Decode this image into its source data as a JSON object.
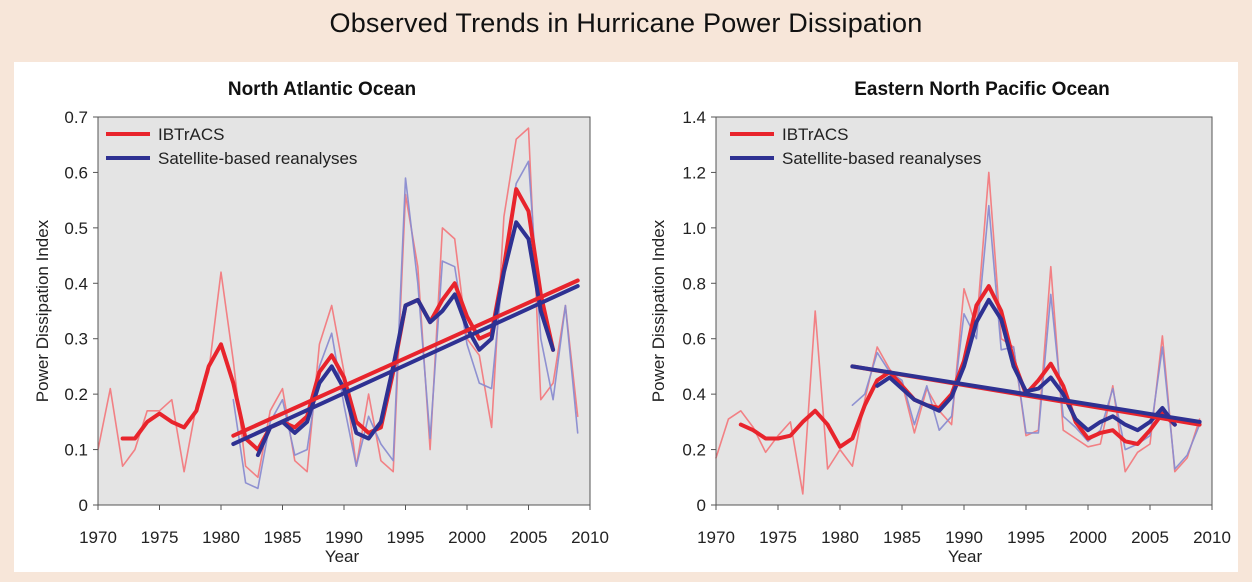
{
  "page": {
    "title": "Observed Trends in Hurricane Power Dissipation"
  },
  "colors": {
    "ibtracs": "#e8242c",
    "satellite": "#2e3192",
    "ibtracs_light": "#f27a7e",
    "satellite_light": "#8a8cd0",
    "plot_bg": "#e4e4e4"
  },
  "chart_data": [
    {
      "type": "line",
      "title": "North Atlantic Ocean",
      "xlabel": "Year",
      "ylabel": "Power Dissipation Index",
      "xlim": [
        1970,
        2010
      ],
      "ylim": [
        0,
        0.7
      ],
      "xticks": [
        1970,
        1975,
        1980,
        1985,
        1990,
        1995,
        2000,
        2005,
        2010
      ],
      "yticks": [
        0,
        0.1,
        0.2,
        0.3,
        0.4,
        0.5,
        0.6,
        0.7
      ],
      "tick_labels_x": [
        "1970",
        "1975",
        "1980",
        "1985",
        "1990",
        "1995",
        "2000",
        "2005",
        "2010"
      ],
      "tick_labels_y": [
        "0",
        "0.1",
        "0.2",
        "0.3",
        "0.4",
        "0.5",
        "0.6",
        "0.7"
      ],
      "legend": {
        "position": "top-left",
        "entries": [
          "IBTrACS",
          "Satellite-based reanalyses"
        ]
      },
      "series": [
        {
          "name": "IBTrACS",
          "style": "annual",
          "x": [
            1970,
            1971,
            1972,
            1973,
            1974,
            1975,
            1976,
            1977,
            1978,
            1979,
            1980,
            1981,
            1982,
            1983,
            1984,
            1985,
            1986,
            1987,
            1988,
            1989,
            1990,
            1991,
            1992,
            1993,
            1994,
            1995,
            1996,
            1997,
            1998,
            1999,
            2000,
            2001,
            2002,
            2003,
            2004,
            2005,
            2006,
            2007,
            2008,
            2009
          ],
          "y": [
            0.1,
            0.21,
            0.07,
            0.1,
            0.17,
            0.17,
            0.19,
            0.06,
            0.18,
            0.24,
            0.42,
            0.26,
            0.07,
            0.05,
            0.17,
            0.21,
            0.08,
            0.06,
            0.29,
            0.36,
            0.24,
            0.07,
            0.2,
            0.08,
            0.06,
            0.56,
            0.43,
            0.1,
            0.5,
            0.48,
            0.3,
            0.27,
            0.14,
            0.52,
            0.66,
            0.68,
            0.19,
            0.22,
            0.36,
            0.16
          ]
        },
        {
          "name": "IBTrACS",
          "style": "smoothed",
          "x": [
            1972,
            1973,
            1974,
            1975,
            1976,
            1977,
            1978,
            1979,
            1980,
            1981,
            1982,
            1983,
            1984,
            1985,
            1986,
            1987,
            1988,
            1989,
            1990,
            1991,
            1992,
            1993,
            1994,
            1995,
            1996,
            1997,
            1998,
            1999,
            2000,
            2001,
            2002,
            2003,
            2004,
            2005,
            2006,
            2007
          ],
          "y": [
            0.12,
            0.12,
            0.15,
            0.165,
            0.15,
            0.14,
            0.17,
            0.25,
            0.29,
            0.22,
            0.12,
            0.1,
            0.14,
            0.15,
            0.14,
            0.16,
            0.24,
            0.27,
            0.23,
            0.15,
            0.13,
            0.14,
            0.24,
            0.36,
            0.37,
            0.33,
            0.37,
            0.4,
            0.34,
            0.3,
            0.31,
            0.43,
            0.57,
            0.53,
            0.38,
            0.28
          ]
        },
        {
          "name": "IBTrACS",
          "style": "trend",
          "x": [
            1981,
            2009
          ],
          "y": [
            0.125,
            0.405
          ]
        },
        {
          "name": "Satellite-based reanalyses",
          "style": "annual",
          "x": [
            1981,
            1982,
            1983,
            1984,
            1985,
            1986,
            1987,
            1988,
            1989,
            1990,
            1991,
            1992,
            1993,
            1994,
            1995,
            1996,
            1997,
            1998,
            1999,
            2000,
            2001,
            2002,
            2003,
            2004,
            2005,
            2006,
            2007,
            2008,
            2009
          ],
          "y": [
            0.19,
            0.04,
            0.03,
            0.15,
            0.19,
            0.09,
            0.1,
            0.25,
            0.31,
            0.18,
            0.07,
            0.16,
            0.11,
            0.08,
            0.59,
            0.4,
            0.12,
            0.44,
            0.43,
            0.29,
            0.22,
            0.21,
            0.44,
            0.58,
            0.62,
            0.3,
            0.19,
            0.36,
            0.13
          ]
        },
        {
          "name": "Satellite-based reanalyses",
          "style": "smoothed",
          "x": [
            1983,
            1984,
            1985,
            1986,
            1987,
            1988,
            1989,
            1990,
            1991,
            1992,
            1993,
            1994,
            1995,
            1996,
            1997,
            1998,
            1999,
            2000,
            2001,
            2002,
            2003,
            2004,
            2005,
            2006,
            2007
          ],
          "y": [
            0.09,
            0.14,
            0.15,
            0.13,
            0.15,
            0.22,
            0.25,
            0.21,
            0.13,
            0.12,
            0.15,
            0.25,
            0.36,
            0.37,
            0.33,
            0.35,
            0.38,
            0.32,
            0.28,
            0.3,
            0.42,
            0.51,
            0.48,
            0.35,
            0.28
          ]
        },
        {
          "name": "Satellite-based reanalyses",
          "style": "trend",
          "x": [
            1981,
            2009
          ],
          "y": [
            0.11,
            0.395
          ]
        }
      ]
    },
    {
      "type": "line",
      "title": "Eastern North Pacific Ocean",
      "xlabel": "Year",
      "ylabel": "Power Dissipation Index",
      "xlim": [
        1970,
        2010
      ],
      "ylim": [
        0,
        1.4
      ],
      "xticks": [
        1970,
        1975,
        1980,
        1985,
        1990,
        1995,
        2000,
        2005,
        2010
      ],
      "yticks": [
        0,
        0.2,
        0.4,
        0.6,
        0.8,
        1.0,
        1.2,
        1.4
      ],
      "tick_labels_x": [
        "1970",
        "1975",
        "1980",
        "1985",
        "1990",
        "1995",
        "2000",
        "2005",
        "2010"
      ],
      "tick_labels_y": [
        "0",
        "0.2",
        "0.4",
        "0.6",
        "0.8",
        "1.0",
        "1.2",
        "1.4"
      ],
      "legend": {
        "position": "top-left",
        "entries": [
          "IBTrACS",
          "Satellite-based reanalyses"
        ]
      },
      "series": [
        {
          "name": "IBTrACS",
          "style": "annual",
          "x": [
            1970,
            1971,
            1972,
            1973,
            1974,
            1975,
            1976,
            1977,
            1978,
            1979,
            1980,
            1981,
            1982,
            1983,
            1984,
            1985,
            1986,
            1987,
            1988,
            1989,
            1990,
            1991,
            1992,
            1993,
            1994,
            1995,
            1996,
            1997,
            1998,
            1999,
            2000,
            2001,
            2002,
            2003,
            2004,
            2005,
            2006,
            2007,
            2008,
            2009
          ],
          "y": [
            0.17,
            0.31,
            0.34,
            0.28,
            0.19,
            0.25,
            0.3,
            0.04,
            0.7,
            0.13,
            0.2,
            0.14,
            0.38,
            0.57,
            0.49,
            0.44,
            0.26,
            0.42,
            0.34,
            0.29,
            0.78,
            0.64,
            1.2,
            0.6,
            0.57,
            0.25,
            0.27,
            0.86,
            0.27,
            0.24,
            0.21,
            0.22,
            0.43,
            0.12,
            0.19,
            0.22,
            0.61,
            0.12,
            0.17,
            0.31
          ]
        },
        {
          "name": "IBTrACS",
          "style": "smoothed",
          "x": [
            1972,
            1973,
            1974,
            1975,
            1976,
            1977,
            1978,
            1979,
            1980,
            1981,
            1982,
            1983,
            1984,
            1985,
            1986,
            1987,
            1988,
            1989,
            1990,
            1991,
            1992,
            1993,
            1994,
            1995,
            1996,
            1997,
            1998,
            1999,
            2000,
            2001,
            2002,
            2003,
            2004,
            2005,
            2006,
            2007
          ],
          "y": [
            0.29,
            0.27,
            0.24,
            0.24,
            0.25,
            0.3,
            0.34,
            0.29,
            0.21,
            0.24,
            0.36,
            0.45,
            0.48,
            0.43,
            0.38,
            0.36,
            0.35,
            0.4,
            0.52,
            0.72,
            0.79,
            0.7,
            0.52,
            0.4,
            0.45,
            0.51,
            0.43,
            0.3,
            0.24,
            0.26,
            0.27,
            0.23,
            0.22,
            0.27,
            0.33,
            0.29
          ]
        },
        {
          "name": "IBTrACS",
          "style": "trend",
          "x": [
            1981,
            2009
          ],
          "y": [
            0.5,
            0.29
          ]
        },
        {
          "name": "Satellite-based reanalyses",
          "style": "annual",
          "x": [
            1981,
            1982,
            1983,
            1984,
            1985,
            1986,
            1987,
            1988,
            1989,
            1990,
            1991,
            1992,
            1993,
            1994,
            1995,
            1996,
            1997,
            1998,
            1999,
            2000,
            2001,
            2002,
            2003,
            2004,
            2005,
            2006,
            2007,
            2008,
            2009
          ],
          "y": [
            0.36,
            0.4,
            0.55,
            0.48,
            0.45,
            0.29,
            0.43,
            0.27,
            0.32,
            0.69,
            0.6,
            1.08,
            0.56,
            0.57,
            0.26,
            0.26,
            0.76,
            0.32,
            0.28,
            0.23,
            0.27,
            0.42,
            0.2,
            0.22,
            0.25,
            0.57,
            0.13,
            0.18,
            0.29
          ]
        },
        {
          "name": "Satellite-based reanalyses",
          "style": "smoothed",
          "x": [
            1983,
            1984,
            1985,
            1986,
            1987,
            1988,
            1989,
            1990,
            1991,
            1992,
            1993,
            1994,
            1995,
            1996,
            1997,
            1998,
            1999,
            2000,
            2001,
            2002,
            2003,
            2004,
            2005,
            2006,
            2007
          ],
          "y": [
            0.43,
            0.46,
            0.42,
            0.38,
            0.36,
            0.34,
            0.39,
            0.5,
            0.66,
            0.74,
            0.67,
            0.5,
            0.41,
            0.42,
            0.46,
            0.4,
            0.31,
            0.27,
            0.3,
            0.32,
            0.29,
            0.27,
            0.3,
            0.35,
            0.29
          ]
        },
        {
          "name": "Satellite-based reanalyses",
          "style": "trend",
          "x": [
            1981,
            2009
          ],
          "y": [
            0.5,
            0.3
          ]
        }
      ]
    }
  ]
}
